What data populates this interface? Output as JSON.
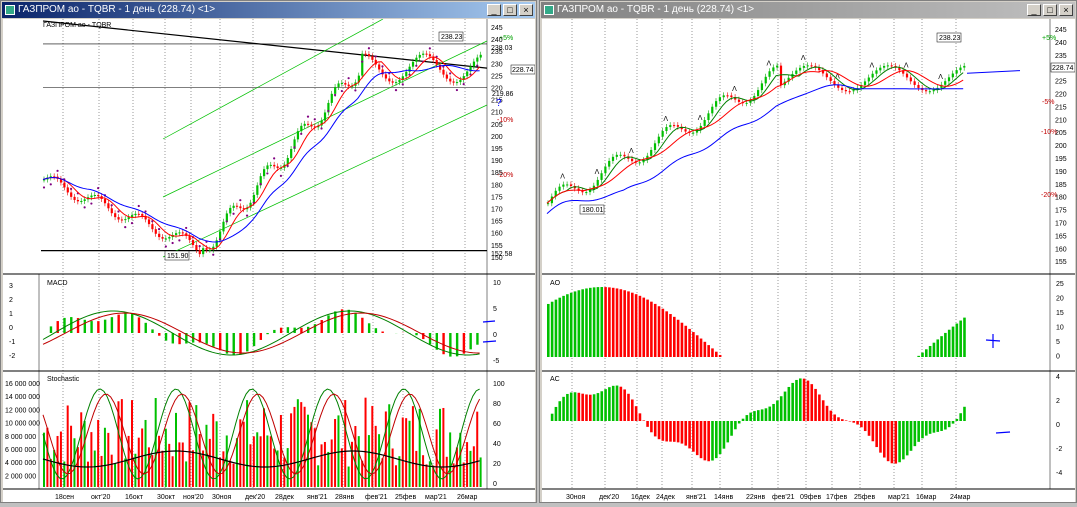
{
  "left_window": {
    "title": "ГАЗПРОМ ао - TQBR - 1 день (228.74) <1>",
    "chart_label": "ГАЗПРОМ ао - TQBR",
    "price_axis": [
      "245",
      "240",
      "235",
      "230",
      "225",
      "220",
      "215",
      "210",
      "205",
      "200",
      "195",
      "190",
      "185",
      "180",
      "175",
      "170",
      "165",
      "160",
      "155",
      "150"
    ],
    "pct_labels": [
      "+5%",
      "-10%",
      "-20%"
    ],
    "last_price": "228.74",
    "labels": {
      "high": "238.23",
      "resist": "238.03",
      "support": "219.86",
      "low": "151.90",
      "bottom": "152.58"
    },
    "macd": {
      "label": "MACD",
      "left_axis": [
        "3",
        "2",
        "1",
        "0",
        "-1",
        "-2"
      ],
      "right_axis": [
        "10",
        "5",
        "0",
        "-5"
      ]
    },
    "stochastic": {
      "label": "Stochastic",
      "left_axis": [
        "16 000 000",
        "14 000 000",
        "12 000 000",
        "10 000 000",
        "8 000 000",
        "6 000 000",
        "4 000 000",
        "2 000 000"
      ],
      "right_axis": [
        "100",
        "80",
        "60",
        "40",
        "20",
        "0"
      ]
    },
    "x_axis": [
      "18сен",
      "окт'20",
      "16окт",
      "30окт",
      "ноя'20",
      "30ноя",
      "дек'20",
      "28дек",
      "янв'21",
      "28янв",
      "фев'21",
      "25фев",
      "мар'21",
      "26мар"
    ],
    "annotation": "?"
  },
  "right_window": {
    "title": "ГАЗПРОМ ао - TQBR - 1 день (228.74) <1>",
    "price_axis": [
      "245",
      "240",
      "235",
      "230",
      "225",
      "220",
      "215",
      "210",
      "205",
      "200",
      "195",
      "190",
      "185",
      "180",
      "175",
      "170",
      "165",
      "160",
      "155"
    ],
    "pct_labels": [
      "+5%",
      "-5%",
      "-10%",
      "-20%"
    ],
    "last_price": "228.74",
    "labels": {
      "high": "238.23",
      "low": "180.01"
    },
    "ao": {
      "label": "AO",
      "right_axis": [
        "25",
        "20",
        "15",
        "10",
        "5",
        "0"
      ]
    },
    "ac": {
      "label": "AC",
      "right_axis": [
        "4",
        "2",
        "0",
        "-2",
        "-4"
      ]
    },
    "x_axis": [
      "30ноя",
      "дек'20",
      "16дек",
      "24дек",
      "янв'21",
      "14янв",
      "22янв",
      "фев'21",
      "09фев",
      "17фев",
      "25фев",
      "мар'21",
      "16мар",
      "24мар"
    ]
  },
  "window_buttons": {
    "minimize": "_",
    "maximize": "□",
    "close": "×"
  },
  "colors": {
    "up": "#00c000",
    "down": "#ff0000",
    "signal_blue": "#0000ff",
    "dots": "#800080",
    "channel": "#00c000"
  }
}
